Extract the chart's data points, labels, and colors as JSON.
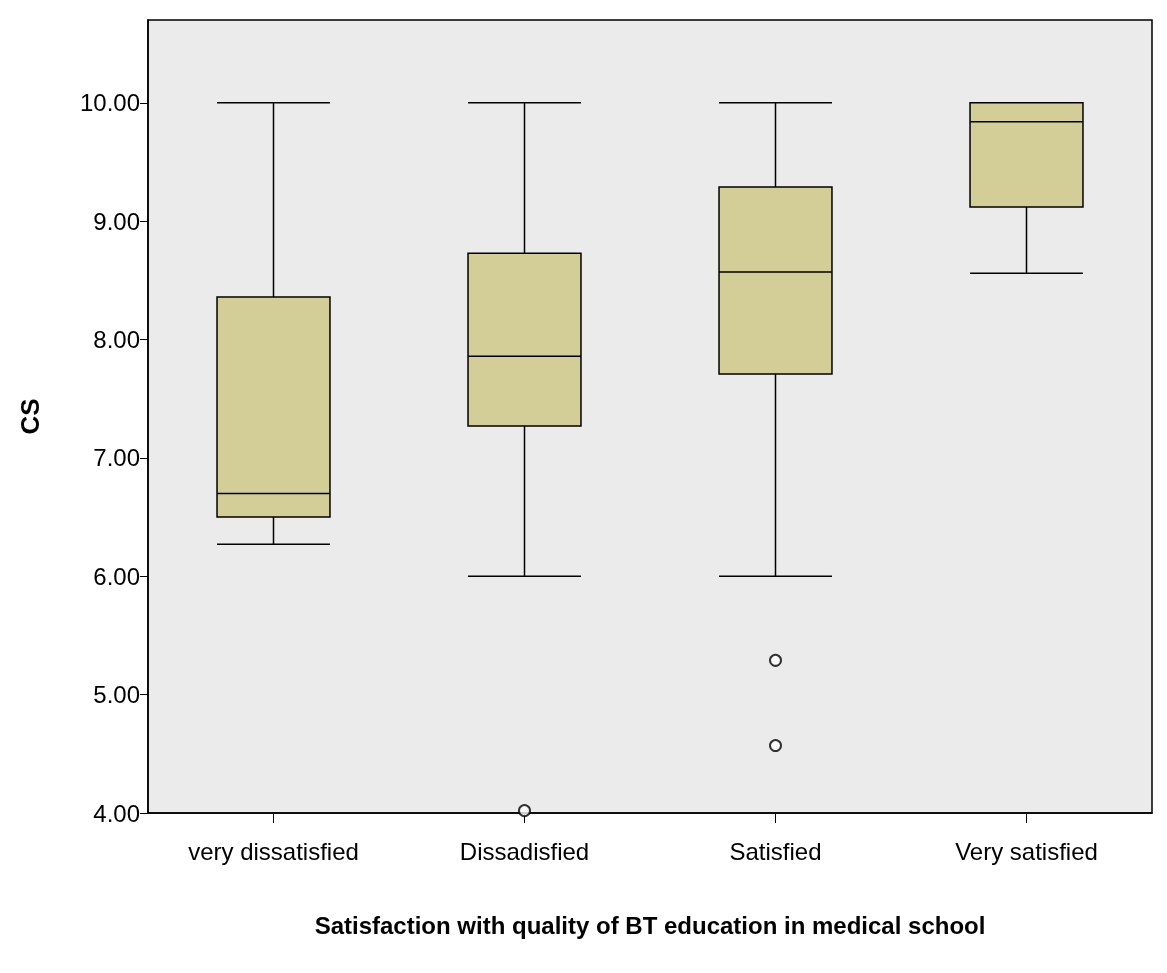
{
  "chart_data": {
    "type": "box",
    "xlabel": "Satisfaction with quality of BT education in medical school",
    "ylabel": "CS",
    "categories": [
      "very dissatisfied",
      "Dissadisfied",
      "Satisfied",
      "Very satisfied"
    ],
    "boxes": [
      {
        "low": 6.27,
        "q1": 6.5,
        "median": 6.7,
        "q3": 8.36,
        "high": 10
      },
      {
        "low": 6,
        "q1": 7.27,
        "median": 7.86,
        "q3": 8.73,
        "high": 10,
        "outliers": [
          4.02
        ]
      },
      {
        "low": 6,
        "q1": 7.71,
        "median": 8.57,
        "q3": 9.29,
        "high": 10,
        "outliers": [
          5.29,
          4.57
        ]
      },
      {
        "low": 8.56,
        "q1": 9.12,
        "median": 9.84,
        "q3": 10,
        "high": 10
      }
    ],
    "color": "#d3ce97",
    "ylim": [
      4,
      10.7
    ],
    "yticks": [
      {
        "value": 4,
        "label": "4.00"
      },
      {
        "value": 5,
        "label": "5.00"
      },
      {
        "value": 6,
        "label": "6.00"
      },
      {
        "value": 7,
        "label": "7.00"
      },
      {
        "value": 8,
        "label": "8.00"
      },
      {
        "value": 9,
        "label": "9.00"
      },
      {
        "value": 10,
        "label": "10.00"
      }
    ],
    "grid": false
  }
}
